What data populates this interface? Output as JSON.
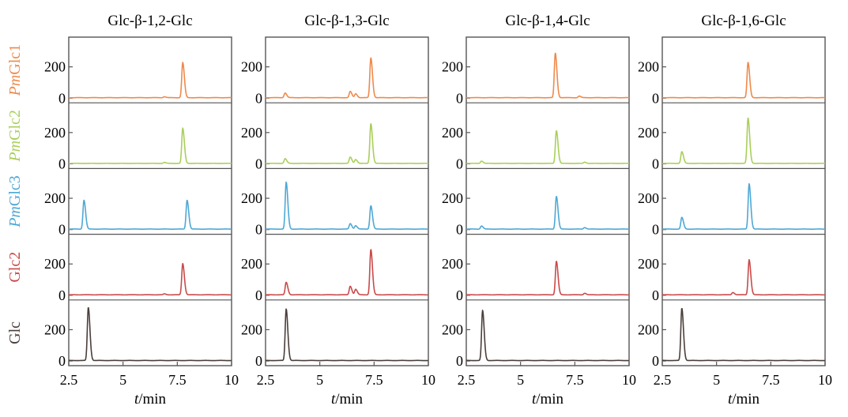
{
  "chart_data": {
    "type": "line",
    "panels": [
      {
        "title": "Glc-β-1,2-Glc",
        "series": [
          {
            "name": "PmGlc1",
            "color": "#ee8a4c",
            "peaks": [
              [
                6.9,
                6
              ],
              [
                7.75,
                225
              ]
            ]
          },
          {
            "name": "PmGlc2",
            "color": "#a9cf5a",
            "peaks": [
              [
                6.9,
                6
              ],
              [
                7.75,
                225
              ]
            ]
          },
          {
            "name": "PmGlc3",
            "color": "#4ea8d5",
            "peaks": [
              [
                3.2,
                185
              ],
              [
                7.95,
                185
              ]
            ]
          },
          {
            "name": "Glc2",
            "color": "#c94a4a",
            "peaks": [
              [
                6.9,
                6
              ],
              [
                7.75,
                200
              ]
            ]
          },
          {
            "name": "Glc",
            "color": "#4a3e3a",
            "peaks": [
              [
                3.4,
                340
              ]
            ]
          }
        ]
      },
      {
        "title": "Glc-β-1,3-Glc",
        "series": [
          {
            "name": "PmGlc1",
            "color": "#ee8a4c",
            "peaks": [
              [
                3.4,
                30
              ],
              [
                6.4,
                40
              ],
              [
                6.65,
                25
              ],
              [
                7.35,
                255
              ]
            ]
          },
          {
            "name": "PmGlc2",
            "color": "#a9cf5a",
            "peaks": [
              [
                3.4,
                30
              ],
              [
                6.4,
                40
              ],
              [
                6.65,
                25
              ],
              [
                7.35,
                255
              ]
            ]
          },
          {
            "name": "PmGlc3",
            "color": "#4ea8d5",
            "peaks": [
              [
                3.45,
                300
              ],
              [
                6.4,
                35
              ],
              [
                6.65,
                22
              ],
              [
                7.35,
                150
              ]
            ]
          },
          {
            "name": "Glc2",
            "color": "#c94a4a",
            "peaks": [
              [
                3.45,
                80
              ],
              [
                6.4,
                55
              ],
              [
                6.65,
                35
              ],
              [
                7.35,
                290
              ]
            ]
          },
          {
            "name": "Glc",
            "color": "#4a3e3a",
            "peaks": [
              [
                3.45,
                330
              ]
            ]
          }
        ]
      },
      {
        "title": "Glc-β-1,4-Glc",
        "series": [
          {
            "name": "PmGlc1",
            "color": "#ee8a4c",
            "peaks": [
              [
                6.6,
                285
              ],
              [
                7.7,
                10
              ]
            ]
          },
          {
            "name": "PmGlc2",
            "color": "#a9cf5a",
            "peaks": [
              [
                3.2,
                15
              ],
              [
                6.65,
                210
              ],
              [
                7.95,
                8
              ]
            ]
          },
          {
            "name": "PmGlc3",
            "color": "#4ea8d5",
            "peaks": [
              [
                3.2,
                20
              ],
              [
                6.65,
                210
              ],
              [
                7.95,
                10
              ]
            ]
          },
          {
            "name": "Glc2",
            "color": "#c94a4a",
            "peaks": [
              [
                6.65,
                215
              ],
              [
                7.95,
                10
              ]
            ]
          },
          {
            "name": "Glc",
            "color": "#4a3e3a",
            "peaks": [
              [
                3.25,
                320
              ]
            ]
          }
        ]
      },
      {
        "title": "Glc-β-1,6-Glc",
        "series": [
          {
            "name": "PmGlc1",
            "color": "#ee8a4c",
            "peaks": [
              [
                6.45,
                225
              ]
            ]
          },
          {
            "name": "PmGlc2",
            "color": "#a9cf5a",
            "peaks": [
              [
                3.4,
                75
              ],
              [
                6.45,
                290
              ]
            ]
          },
          {
            "name": "PmGlc3",
            "color": "#4ea8d5",
            "peaks": [
              [
                3.4,
                75
              ],
              [
                6.5,
                290
              ]
            ]
          },
          {
            "name": "Glc2",
            "color": "#c94a4a",
            "peaks": [
              [
                5.75,
                15
              ],
              [
                6.5,
                225
              ]
            ]
          },
          {
            "name": "Glc",
            "color": "#4a3e3a",
            "peaks": [
              [
                3.4,
                335
              ]
            ]
          }
        ]
      }
    ],
    "row_labels": [
      {
        "prefix": "Pm",
        "suffix": "Glc1",
        "color": "#ee8a4c"
      },
      {
        "prefix": "Pm",
        "suffix": "Glc2",
        "color": "#a9cf5a"
      },
      {
        "prefix": "Pm",
        "suffix": "Glc3",
        "color": "#4ea8d5"
      },
      {
        "prefix": "",
        "suffix": "Glc2",
        "color": "#c94a4a"
      },
      {
        "prefix": "",
        "suffix": "Glc",
        "color": "#4a3e3a"
      }
    ],
    "xlabel": {
      "var": "t",
      "unit": "/min"
    },
    "xlim": [
      2.5,
      10
    ],
    "ylim": [
      -30,
      390
    ],
    "xticks": [
      2.5,
      5,
      7.5,
      10
    ],
    "xtick_labels": [
      "2.5",
      "5",
      "7.5",
      "10"
    ],
    "yticks": [
      0,
      200
    ],
    "ytick_labels": [
      "0",
      "200"
    ],
    "grid": false
  }
}
